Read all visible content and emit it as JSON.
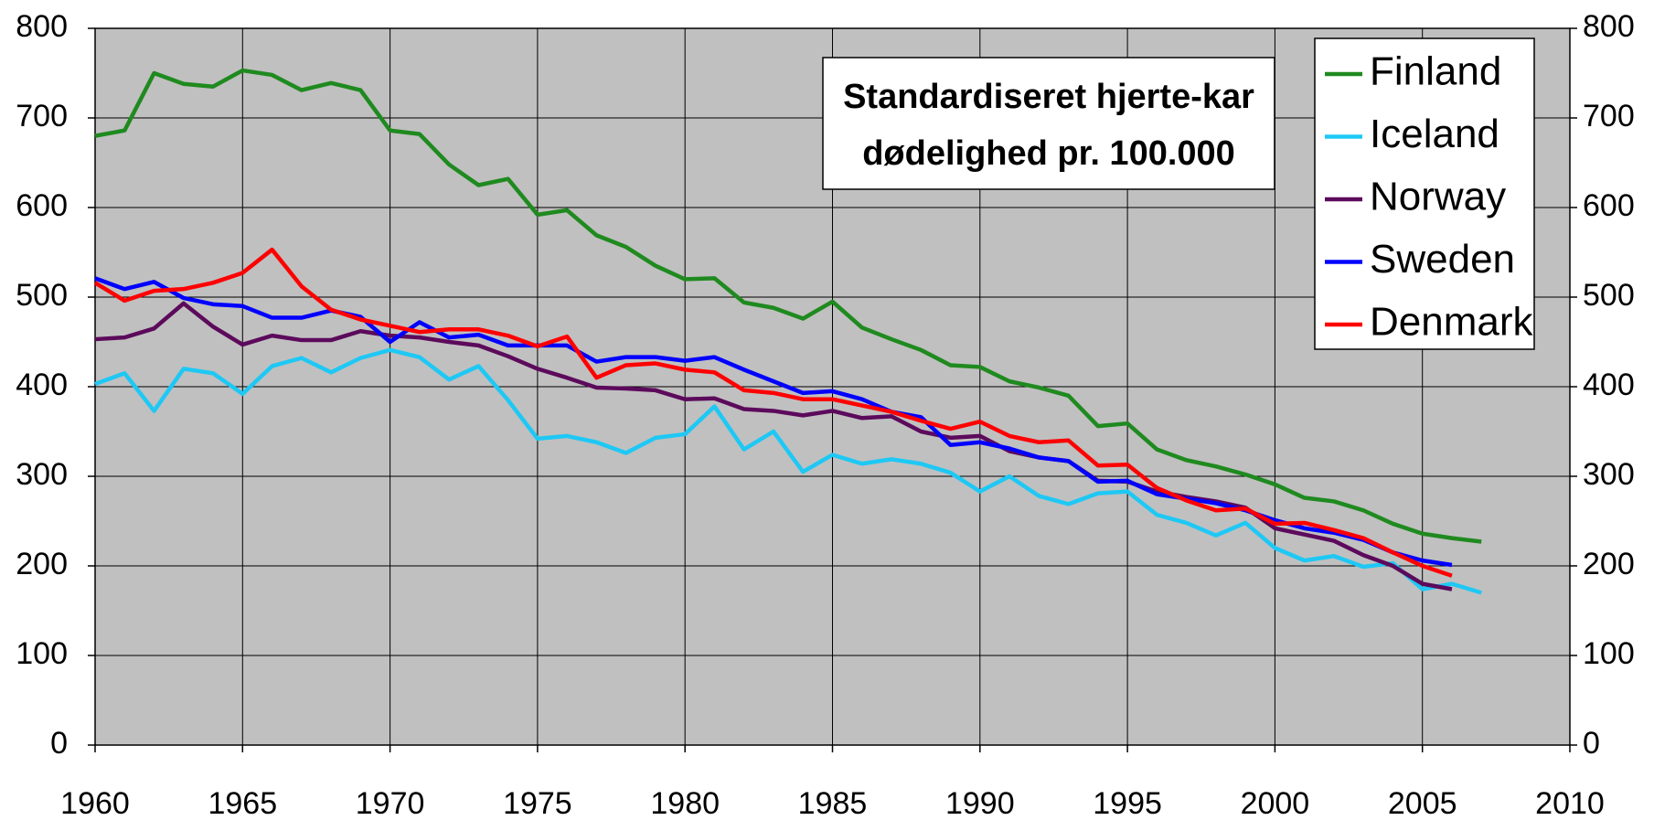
{
  "chart_data": {
    "type": "line",
    "title": [
      "Standardiseret hjerte-kar",
      "dødelighed pr. 100.000"
    ],
    "x": [
      1960,
      1961,
      1962,
      1963,
      1964,
      1965,
      1966,
      1967,
      1968,
      1969,
      1970,
      1971,
      1972,
      1973,
      1974,
      1975,
      1976,
      1977,
      1978,
      1979,
      1980,
      1981,
      1982,
      1983,
      1984,
      1985,
      1986,
      1987,
      1988,
      1989,
      1990,
      1991,
      1992,
      1993,
      1994,
      1995,
      1996,
      1997,
      1998,
      1999,
      2000,
      2001,
      2002,
      2003,
      2004,
      2005,
      2006,
      2007
    ],
    "series": [
      {
        "name": "Finland",
        "color": "#1f8a1f",
        "values": [
          680,
          686,
          750,
          738,
          735,
          753,
          748,
          731,
          739,
          731,
          686,
          682,
          648,
          625,
          632,
          592,
          597,
          569,
          556,
          535,
          520,
          521,
          494,
          488,
          476,
          495,
          466,
          453,
          441,
          424,
          422,
          406,
          399,
          390,
          356,
          359,
          330,
          318,
          311,
          302,
          291,
          276,
          272,
          262,
          247,
          236,
          231,
          227
        ]
      },
      {
        "name": "Iceland",
        "color": "#1ec8f5",
        "values": [
          403,
          415,
          373,
          420,
          415,
          392,
          423,
          432,
          416,
          432,
          441,
          433,
          408,
          423,
          385,
          342,
          345,
          338,
          326,
          343,
          347,
          378,
          330,
          350,
          305,
          324,
          314,
          319,
          314,
          304,
          283,
          300,
          278,
          269,
          281,
          283,
          257,
          248,
          234,
          248,
          220,
          206,
          211,
          199,
          203,
          174,
          180,
          170
        ]
      },
      {
        "name": "Norway",
        "color": "#5c0a5c",
        "values": [
          453,
          455,
          465,
          493,
          467,
          447,
          457,
          452,
          452,
          462,
          457,
          455,
          450,
          446,
          434,
          420,
          410,
          399,
          398,
          396,
          386,
          387,
          375,
          373,
          368,
          373,
          365,
          367,
          350,
          343,
          345,
          328,
          321,
          317,
          295,
          294,
          283,
          277,
          272,
          265,
          242,
          235,
          228,
          212,
          200,
          180,
          174,
          null
        ]
      },
      {
        "name": "Sweden",
        "color": "#0000ff",
        "values": [
          521,
          509,
          517,
          499,
          492,
          490,
          477,
          477,
          485,
          478,
          450,
          472,
          455,
          458,
          446,
          446,
          446,
          428,
          433,
          433,
          429,
          433,
          419,
          406,
          393,
          395,
          386,
          372,
          366,
          335,
          338,
          331,
          321,
          317,
          294,
          295,
          280,
          275,
          270,
          262,
          251,
          242,
          237,
          229,
          215,
          206,
          201,
          null
        ]
      },
      {
        "name": "Denmark",
        "color": "#ff0000",
        "values": [
          516,
          496,
          507,
          509,
          516,
          527,
          553,
          512,
          486,
          475,
          468,
          461,
          464,
          464,
          457,
          445,
          456,
          410,
          424,
          426,
          419,
          416,
          396,
          393,
          386,
          386,
          379,
          372,
          362,
          353,
          361,
          345,
          338,
          340,
          312,
          313,
          287,
          273,
          262,
          264,
          247,
          248,
          240,
          231,
          215,
          200,
          189,
          null
        ]
      }
    ],
    "xlim": [
      1960,
      2010
    ],
    "xticks": [
      1960,
      1965,
      1970,
      1975,
      1980,
      1985,
      1990,
      1995,
      2000,
      2005,
      2010
    ],
    "ylim": [
      0,
      800
    ],
    "yticks": [
      0,
      100,
      200,
      300,
      400,
      500,
      600,
      700,
      800
    ],
    "y2lim": [
      0,
      800
    ],
    "y2ticks": [
      0,
      100,
      200,
      300,
      400,
      500,
      600,
      700,
      800
    ],
    "grid": true,
    "legend": "upper right",
    "background": "#c0c0c0"
  }
}
